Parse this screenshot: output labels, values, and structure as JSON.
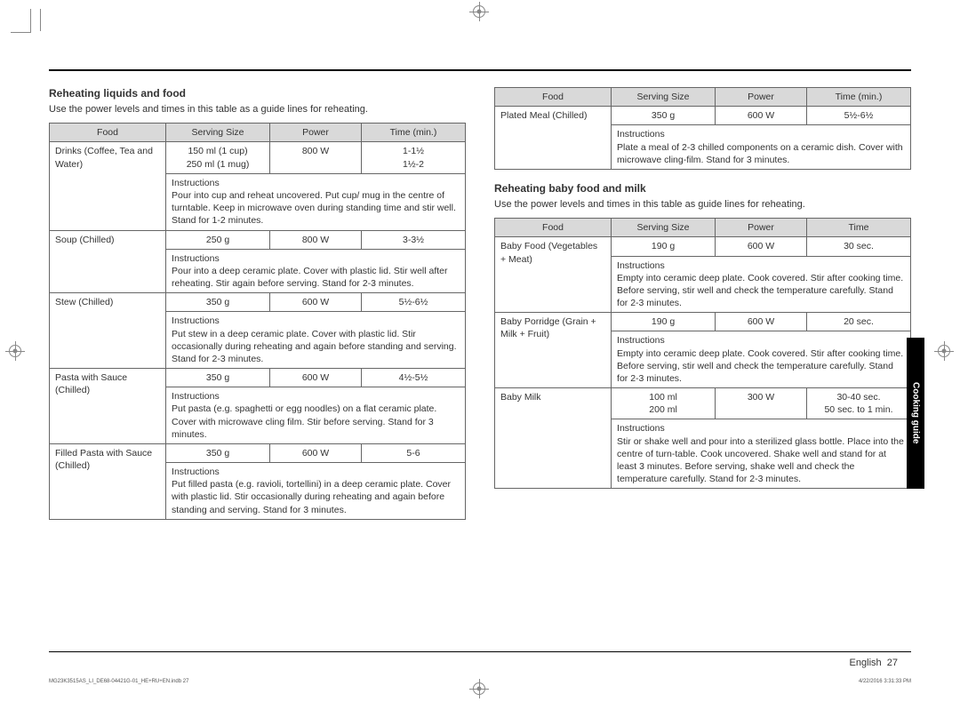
{
  "sideTab": "Cooking guide",
  "footer": {
    "lang": "English",
    "pageNum": "27",
    "printLeft": "MG23K3515AS_LI_DE68-04421G-01_HE+RU+EN.indb  27",
    "printRight": "4/22/2016  3:31:33 PM"
  },
  "section1": {
    "heading": "Reheating liquids and food",
    "intro": "Use the power levels and times in this table as a guide lines for reheating.",
    "headers": {
      "food": "Food",
      "serving": "Serving Size",
      "power": "Power",
      "time": "Time (min.)"
    },
    "instrLabel": "Instructions",
    "rows": [
      {
        "food": "Drinks (Coffee, Tea and Water)",
        "serving": "150 ml (1 cup)\n250 ml (1 mug)",
        "power": "800 W",
        "time": "1-1½\n1½-2",
        "instr": "Pour into cup and reheat uncovered. Put cup/ mug in the centre of turntable. Keep in microwave oven during standing time and stir well. Stand for 1-2 minutes."
      },
      {
        "food": "Soup (Chilled)",
        "serving": "250 g",
        "power": "800 W",
        "time": "3-3½",
        "instr": "Pour into a deep ceramic plate. Cover with plastic lid. Stir well after reheating. Stir again before serving. Stand for 2-3 minutes."
      },
      {
        "food": "Stew (Chilled)",
        "serving": "350 g",
        "power": "600 W",
        "time": "5½-6½",
        "instr": "Put stew in a deep ceramic plate. Cover with plastic lid. Stir occasionally during reheating and again before standing and serving. Stand for 2-3 minutes."
      },
      {
        "food": "Pasta with Sauce (Chilled)",
        "serving": "350 g",
        "power": "600 W",
        "time": "4½-5½",
        "instr": "Put pasta (e.g. spaghetti or egg noodles) on a flat ceramic plate. Cover with microwave cling film. Stir before serving. Stand for 3 minutes."
      },
      {
        "food": "Filled Pasta with Sauce (Chilled)",
        "serving": "350 g",
        "power": "600 W",
        "time": "5-6",
        "instr": "Put filled pasta (e.g. ravioli, tortellini) in a deep ceramic plate. Cover with plastic lid. Stir occasionally during reheating and again before standing and serving. Stand for 3 minutes."
      }
    ]
  },
  "section1cont": {
    "headers": {
      "food": "Food",
      "serving": "Serving Size",
      "power": "Power",
      "time": "Time (min.)"
    },
    "instrLabel": "Instructions",
    "rows": [
      {
        "food": "Plated Meal (Chilled)",
        "serving": "350 g",
        "power": "600 W",
        "time": "5½-6½",
        "instr": "Plate a meal of 2-3 chilled components on a ceramic dish. Cover with microwave cling-film. Stand for 3 minutes."
      }
    ]
  },
  "section2": {
    "heading": "Reheating baby food and milk",
    "intro": "Use the power levels and times in this table as guide lines for reheating.",
    "headers": {
      "food": "Food",
      "serving": "Serving Size",
      "power": "Power",
      "time": "Time"
    },
    "instrLabel": "Instructions",
    "rows": [
      {
        "food": "Baby Food (Vegetables + Meat)",
        "serving": "190 g",
        "power": "600 W",
        "time": "30 sec.",
        "instr": "Empty into ceramic deep plate. Cook covered. Stir after cooking time. Before serving, stir well and check the temperature carefully. Stand for 2-3 minutes."
      },
      {
        "food": "Baby Porridge (Grain + Milk + Fruit)",
        "serving": "190 g",
        "power": "600 W",
        "time": "20 sec.",
        "instr": "Empty into ceramic deep plate. Cook covered. Stir after cooking time. Before serving, stir well and check the temperature carefully. Stand for 2-3 minutes."
      },
      {
        "food": "Baby Milk",
        "serving": "100 ml\n200 ml",
        "power": "300 W",
        "time": "30-40 sec.\n50 sec. to 1 min.",
        "instr": "Stir or shake well and pour into a sterilized glass bottle. Place into the centre of turn-table. Cook uncovered. Shake well and stand for at least 3 minutes. Before serving, shake well and check the temperature carefully. Stand for 2-3 minutes."
      }
    ]
  }
}
